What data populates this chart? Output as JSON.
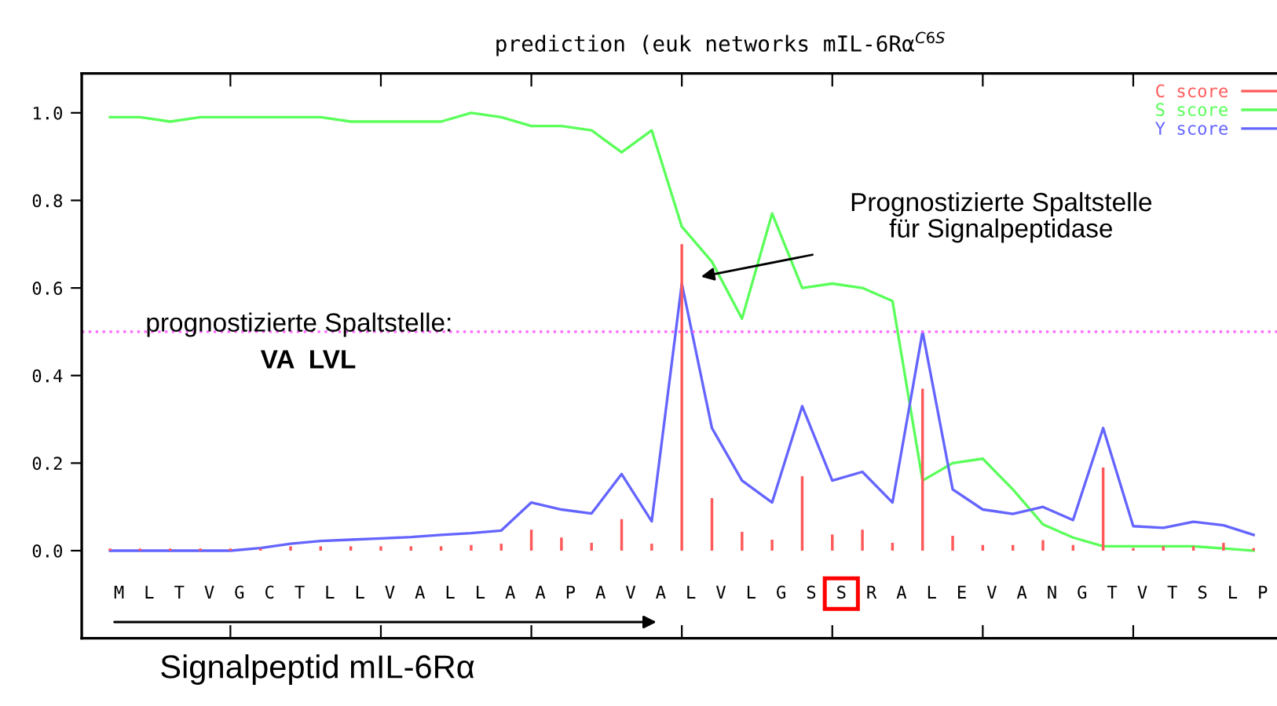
{
  "chart_data": {
    "type": "line",
    "title": "prediction (euk networks mIL-6Rα$^{C6S}$",
    "categories": [
      "M",
      "L",
      "T",
      "V",
      "G",
      "C",
      "T",
      "L",
      "L",
      "V",
      "A",
      "L",
      "L",
      "A",
      "A",
      "P",
      "A",
      "V",
      "A",
      "L",
      "V",
      "L",
      "G",
      "S",
      "S",
      "R",
      "A",
      "L",
      "E",
      "V",
      "A",
      "N",
      "G",
      "T",
      "V",
      "T",
      "S",
      "L",
      "P"
    ],
    "series": [
      {
        "name": "C score",
        "type": "bar",
        "color": "#ff5a5a",
        "values": [
          0.005,
          0.005,
          0.005,
          0.005,
          0.005,
          0.005,
          0.01,
          0.01,
          0.01,
          0.01,
          0.01,
          0.01,
          0.013,
          0.016,
          0.048,
          0.03,
          0.018,
          0.072,
          0.016,
          0.7,
          0.12,
          0.043,
          0.025,
          0.17,
          0.037,
          0.048,
          0.018,
          0.37,
          0.034,
          0.013,
          0.013,
          0.024,
          0.013,
          0.19,
          0.006,
          0.01,
          0.01,
          0.018,
          0.006
        ]
      },
      {
        "name": "S score",
        "color": "#5aff5a",
        "values": [
          0.99,
          0.99,
          0.98,
          0.99,
          0.99,
          0.99,
          0.99,
          0.99,
          0.98,
          0.98,
          0.98,
          0.98,
          1.0,
          0.99,
          0.97,
          0.97,
          0.96,
          0.91,
          0.96,
          0.74,
          0.66,
          0.53,
          0.77,
          0.6,
          0.61,
          0.6,
          0.57,
          0.16,
          0.2,
          0.21,
          0.14,
          0.06,
          0.03,
          0.01,
          0.01,
          0.01,
          0.01,
          0.005,
          0.0
        ]
      },
      {
        "name": "Y score",
        "color": "#6464ff",
        "values": [
          0.0,
          0.0,
          0.0,
          0.0,
          0.0,
          0.006,
          0.016,
          0.022,
          0.025,
          0.028,
          0.031,
          0.036,
          0.04,
          0.046,
          0.11,
          0.094,
          0.085,
          0.175,
          0.067,
          0.61,
          0.28,
          0.16,
          0.11,
          0.33,
          0.16,
          0.18,
          0.11,
          0.5,
          0.14,
          0.094,
          0.084,
          0.1,
          0.07,
          0.28,
          0.056,
          0.052,
          0.066,
          0.058,
          0.036
        ]
      }
    ],
    "ylim": [
      -0.2,
      1.09
    ],
    "yticks": [
      {
        "value": 0.0,
        "label": "0.0"
      },
      {
        "value": 0.2,
        "label": "0.2"
      },
      {
        "value": 0.4,
        "label": "0.4"
      },
      {
        "value": 0.6,
        "label": "0.6"
      },
      {
        "value": 0.8,
        "label": "0.8"
      },
      {
        "value": 1.0,
        "label": "1.0"
      }
    ],
    "ref_lines": [
      {
        "axis": "y",
        "value": 0.5,
        "color": "#ff66ff",
        "line_style": "dotted"
      }
    ],
    "annotations": [
      "prognostizierte Spaltstelle:",
      "VA  LVL",
      "Prognostizierte Spaltstelle\nfür Signalpeptidase",
      "Signalpeptid mIL-6Rα"
    ],
    "legend": "top right",
    "grid": false,
    "marker": "none",
    "line_style": "solid"
  }
}
